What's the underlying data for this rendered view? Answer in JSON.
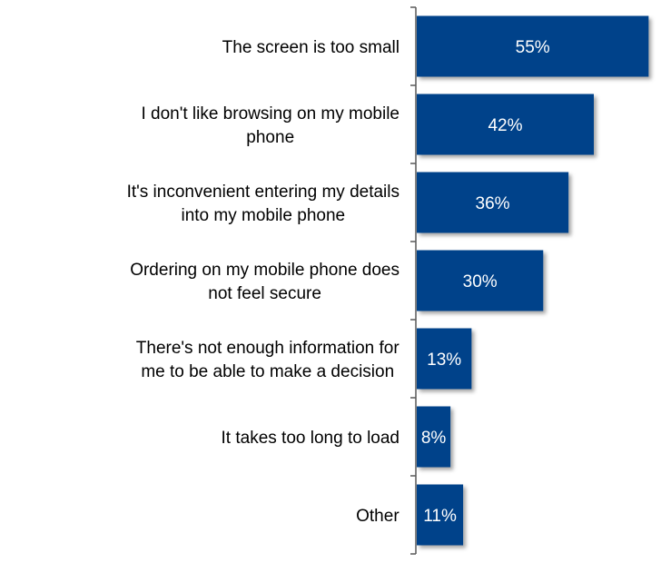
{
  "chart_data": {
    "type": "bar",
    "orientation": "horizontal",
    "categories": [
      [
        "The screen is too small"
      ],
      [
        "I don't like browsing on my mobile",
        "phone"
      ],
      [
        "It's inconvenient entering my details",
        "into my mobile phone"
      ],
      [
        "Ordering on my mobile phone does",
        "not feel secure"
      ],
      [
        "There's not enough information for",
        "me to be able to make a decision"
      ],
      [
        "It takes too long to load"
      ],
      [
        "Other"
      ]
    ],
    "values": [
      55,
      42,
      36,
      30,
      13,
      8,
      11
    ],
    "value_labels": [
      "55%",
      "42%",
      "36%",
      "30%",
      "13%",
      "8%",
      "11%"
    ],
    "xlim": [
      0,
      56
    ],
    "bar_color": "#00438a",
    "axis_color": "#595959"
  }
}
